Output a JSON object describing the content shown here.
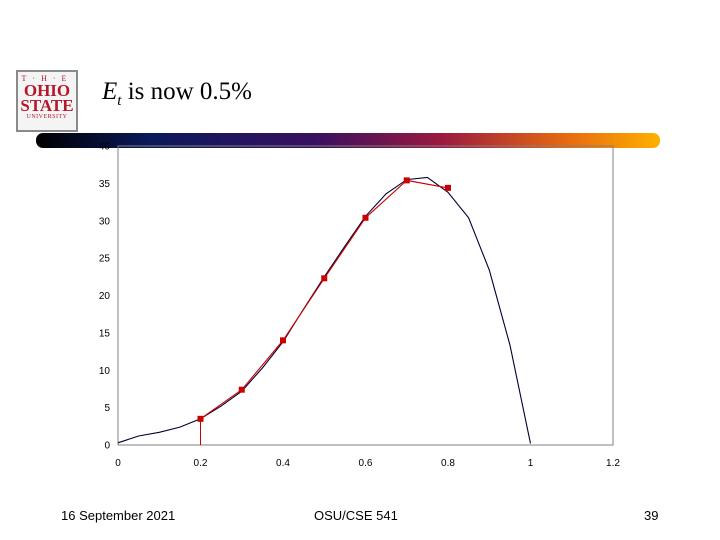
{
  "slide": {
    "title_symbol": "E",
    "title_subscript": "t",
    "title_rest": " is now 0.5%",
    "footer_date": "16 September 2021",
    "footer_course": "OSU/CSE 541",
    "page_number": "39"
  },
  "logo": {
    "line1": "T·H·E",
    "line2": "OHIO",
    "line3": "STATE",
    "line4": "UNIVERSITY",
    "color": "#b5172b"
  },
  "chart_data": {
    "type": "line",
    "xlim": [
      0,
      1.2
    ],
    "ylim": [
      0,
      40
    ],
    "x_ticks": [
      0,
      0.2,
      0.4,
      0.6,
      0.8,
      1,
      1.2
    ],
    "x_tick_labels": [
      "0",
      "0.2",
      "0.4",
      "0.6",
      "0.8",
      "1",
      "1.2"
    ],
    "y_ticks": [
      0,
      5,
      10,
      15,
      20,
      25,
      30,
      35,
      40
    ],
    "y_tick_labels": [
      "0",
      "5",
      "10",
      "15",
      "20",
      "25",
      "30",
      "35",
      "40"
    ],
    "grid": false,
    "series": [
      {
        "color": "#000033",
        "marker": false,
        "x": [
          0,
          0.05,
          0.1,
          0.15,
          0.2,
          0.25,
          0.3,
          0.35,
          0.4,
          0.45,
          0.5,
          0.55,
          0.6,
          0.65,
          0.7,
          0.75,
          0.8,
          0.85,
          0.9,
          0.95,
          1
        ],
        "y": [
          0.3,
          1.2,
          1.7,
          2.4,
          3.5,
          5.2,
          7.2,
          10.3,
          13.8,
          18.2,
          22.5,
          26.6,
          30.6,
          33.6,
          35.5,
          35.8,
          33.8,
          30.4,
          23.4,
          13.4,
          0.2
        ]
      },
      {
        "color": "#cc0000",
        "marker": true,
        "x": [
          0.2,
          0.3,
          0.4,
          0.5,
          0.6,
          0.7,
          0.8
        ],
        "y": [
          3.5,
          7.4,
          14.0,
          22.3,
          30.4,
          35.4,
          34.4
        ]
      }
    ],
    "vertical_line": {
      "x": 0.2,
      "from_y": 0,
      "to_y": 3.5,
      "color": "#cc0000"
    }
  }
}
